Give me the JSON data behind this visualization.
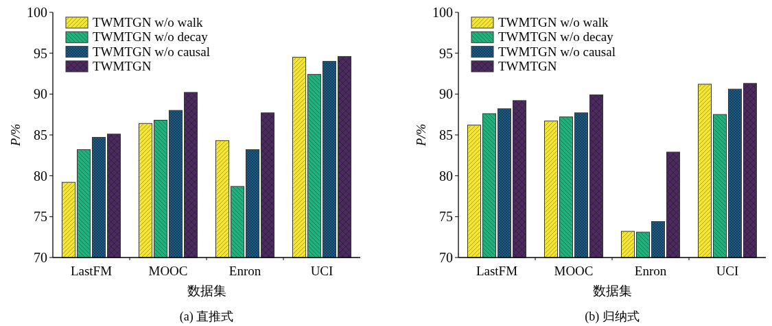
{
  "chart_data": [
    {
      "type": "bar",
      "categories": [
        "LastFM",
        "MOOC",
        "Enron",
        "UCI"
      ],
      "xlabel": "数据集",
      "ylabel": "P/%",
      "ylim": [
        70,
        100
      ],
      "yticks": [
        70,
        75,
        80,
        85,
        90,
        95,
        100
      ],
      "legend": "top left",
      "annotations": [
        "(a) 直推式"
      ],
      "series": [
        {
          "name": "TWMTGN w/o walk",
          "color": "#f3e53c",
          "values": [
            79.2,
            86.4,
            84.3,
            94.5
          ]
        },
        {
          "name": "TWMTGN w/o decay",
          "color": "#1cb47d",
          "values": [
            83.2,
            86.8,
            78.7,
            92.4
          ]
        },
        {
          "name": "TWMTGN w/o causal",
          "color": "#1f5c85",
          "values": [
            84.7,
            88.0,
            83.2,
            94.0
          ]
        },
        {
          "name": "TWMTGN",
          "color": "#4b2a5e",
          "values": [
            85.1,
            90.2,
            87.7,
            94.6
          ]
        }
      ]
    },
    {
      "type": "bar",
      "categories": [
        "LastFM",
        "MOOC",
        "Enron",
        "UCI"
      ],
      "xlabel": "数据集",
      "ylabel": "P/%",
      "ylim": [
        70,
        100
      ],
      "yticks": [
        70,
        75,
        80,
        85,
        90,
        95,
        100
      ],
      "legend": "top left",
      "annotations": [
        "(b) 归纳式"
      ],
      "series": [
        {
          "name": "TWMTGN w/o walk",
          "color": "#f3e53c",
          "values": [
            86.2,
            86.7,
            73.2,
            91.2
          ]
        },
        {
          "name": "TWMTGN w/o decay",
          "color": "#1cb47d",
          "values": [
            87.6,
            87.2,
            73.1,
            87.5
          ]
        },
        {
          "name": "TWMTGN w/o causal",
          "color": "#1f5c85",
          "values": [
            88.2,
            87.7,
            74.4,
            90.6
          ]
        },
        {
          "name": "TWMTGN",
          "color": "#4b2a5e",
          "values": [
            89.2,
            89.9,
            82.9,
            91.3
          ]
        }
      ]
    }
  ]
}
